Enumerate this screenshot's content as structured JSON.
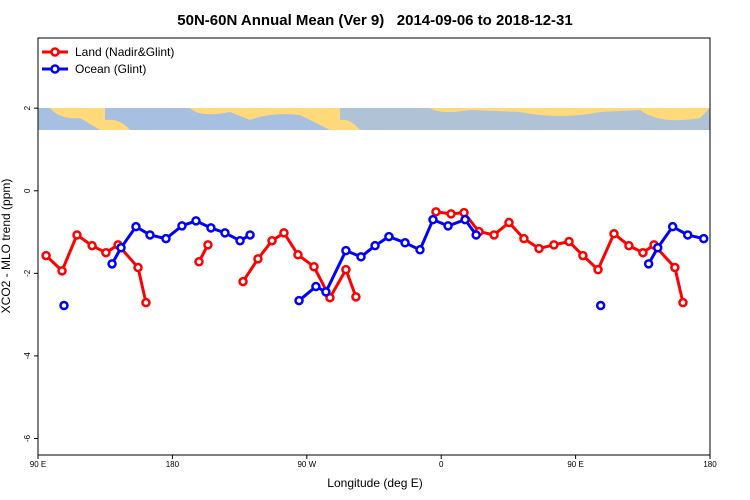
{
  "chart_data": {
    "type": "line",
    "title": "50N-60N Annual Mean (Ver 9)   2014-09-06 to 2018-12-31",
    "x_label": "Longitude (deg E)",
    "y_label": "XCO2 - MLO trend (ppm)",
    "legend": "top-left",
    "xlim": [
      90,
      540
    ],
    "xticks": [
      {
        "value": 90,
        "label": "90 E"
      },
      180,
      {
        "value": 270,
        "label": "90 W"
      },
      {
        "value": 360,
        "label": "0"
      },
      {
        "value": 450,
        "label": "90 E"
      },
      {
        "value": 540,
        "label": "180"
      }
    ],
    "ylim": [
      -6.4,
      3.7
    ],
    "yticks": [
      -6,
      -4,
      -2,
      0,
      2
    ],
    "series": [
      {
        "name": "Land (Nadir&Glint)",
        "color": "#ff0000",
        "x": [
          95.4,
          106.1,
          116.1,
          126.2,
          135.5,
          143.6,
          157.0,
          162.3,
          null,
          197.8,
          203.8,
          null,
          227.3,
          237.3,
          246.7,
          254.7,
          264.1,
          274.8,
          285.5,
          296.2,
          302.9,
          null,
          356.5,
          366.6,
          375.3,
          385.3,
          395.4,
          405.4,
          415.4,
          425.5,
          435.5,
          445.6,
          454.9,
          465.0,
          475.7,
          485.7,
          495.1,
          502.5,
          516.5,
          521.9
        ],
        "values": [
          -1.57,
          -1.94,
          -1.07,
          -1.33,
          -1.5,
          -1.31,
          -1.86,
          -2.71,
          null,
          -1.72,
          -1.31,
          null,
          -2.2,
          -1.65,
          -1.21,
          -1.02,
          -1.55,
          -1.84,
          -2.59,
          -1.91,
          -2.57,
          null,
          -0.51,
          -0.56,
          -0.53,
          -0.99,
          -1.07,
          -0.77,
          -1.16,
          -1.4,
          -1.31,
          -1.23,
          -1.57,
          -1.91,
          -1.04,
          -1.33,
          -1.5,
          -1.31,
          -1.86,
          -2.71
        ]
      },
      {
        "name": "Ocean (Glint)",
        "color": "#0000ff",
        "x": [
          107.4,
          null,
          139.6,
          145.6,
          155.6,
          165.0,
          175.7,
          186.4,
          195.8,
          205.8,
          215.2,
          225.3,
          232.0,
          null,
          264.8,
          276.1,
          282.8,
          296.2,
          306.3,
          315.7,
          325.0,
          335.8,
          345.8,
          354.5,
          364.6,
          376.0,
          383.4,
          null,
          466.8,
          null,
          498.9,
          505.0,
          515.0,
          525.1,
          535.8
        ],
        "values": [
          -2.78,
          null,
          -1.77,
          -1.38,
          -0.87,
          -1.07,
          -1.16,
          -0.85,
          -0.73,
          -0.9,
          -1.02,
          -1.21,
          -1.07,
          null,
          -2.66,
          -2.32,
          -2.45,
          -1.45,
          -1.6,
          -1.33,
          -1.11,
          -1.26,
          -1.43,
          -0.7,
          -0.85,
          -0.7,
          -1.07,
          null,
          -2.78,
          null,
          -1.77,
          -1.38,
          -0.87,
          -1.07,
          -1.16
        ]
      }
    ]
  }
}
